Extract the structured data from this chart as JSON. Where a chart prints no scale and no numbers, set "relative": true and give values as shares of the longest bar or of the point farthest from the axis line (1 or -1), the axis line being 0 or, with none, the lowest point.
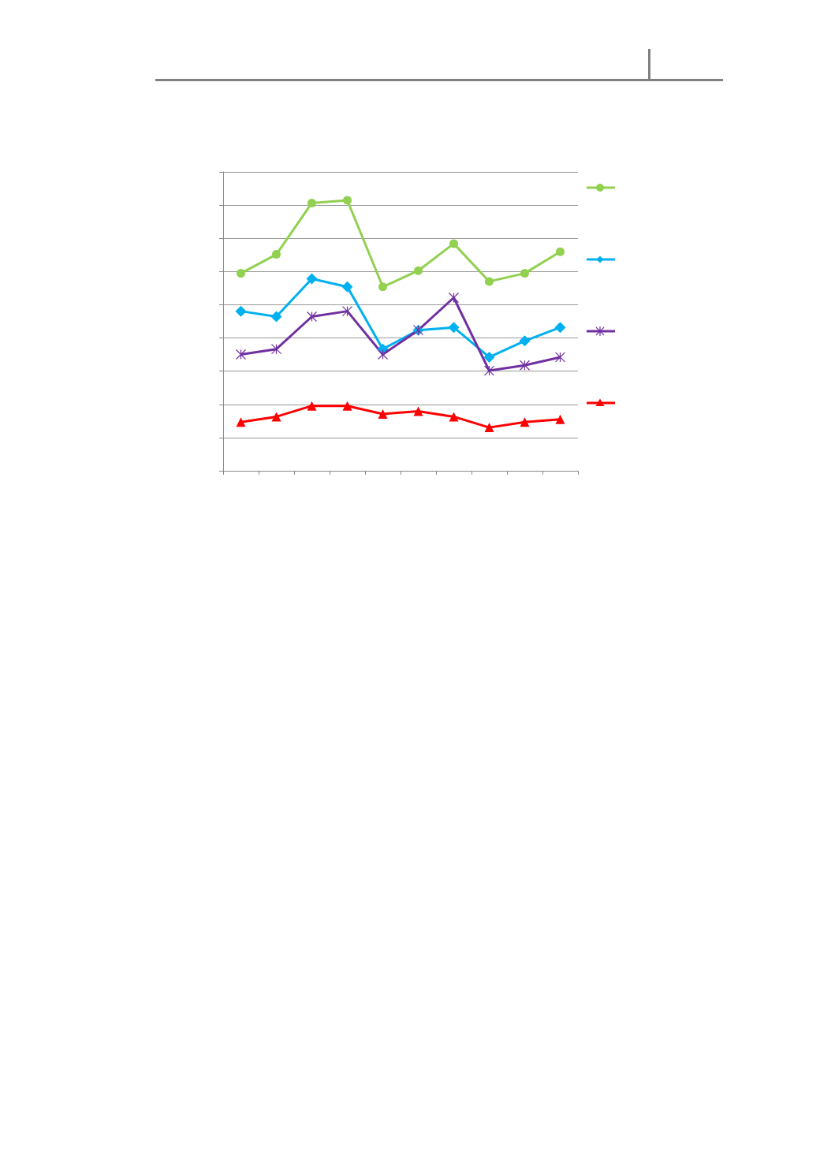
{
  "chart_data": {
    "type": "line",
    "relative": true,
    "grid": "y",
    "categories": [
      null,
      null,
      null,
      null,
      null,
      null,
      null,
      null,
      null,
      null
    ],
    "series": [
      {
        "color": "#92d050",
        "marker": "circle",
        "values": [
          0.73,
          0.8,
          0.99,
          1,
          0.68,
          0.74,
          0.84,
          0.7,
          0.73,
          0.81
        ]
      },
      {
        "color": "#00b0f0",
        "marker": "diamond",
        "values": [
          0.59,
          0.57,
          0.71,
          0.68,
          0.45,
          0.52,
          0.53,
          0.42,
          0.48,
          0.53
        ]
      },
      {
        "color": "#7030a0",
        "marker": "cross",
        "values": [
          0.43,
          0.45,
          0.57,
          0.59,
          0.43,
          0.52,
          0.64,
          0.37,
          0.39,
          0.42
        ]
      },
      {
        "color": "#ff0000",
        "marker": "triangle",
        "values": [
          0.18,
          0.2,
          0.24,
          0.24,
          0.21,
          0.22,
          0.2,
          0.16,
          0.18,
          0.19
        ]
      }
    ]
  }
}
